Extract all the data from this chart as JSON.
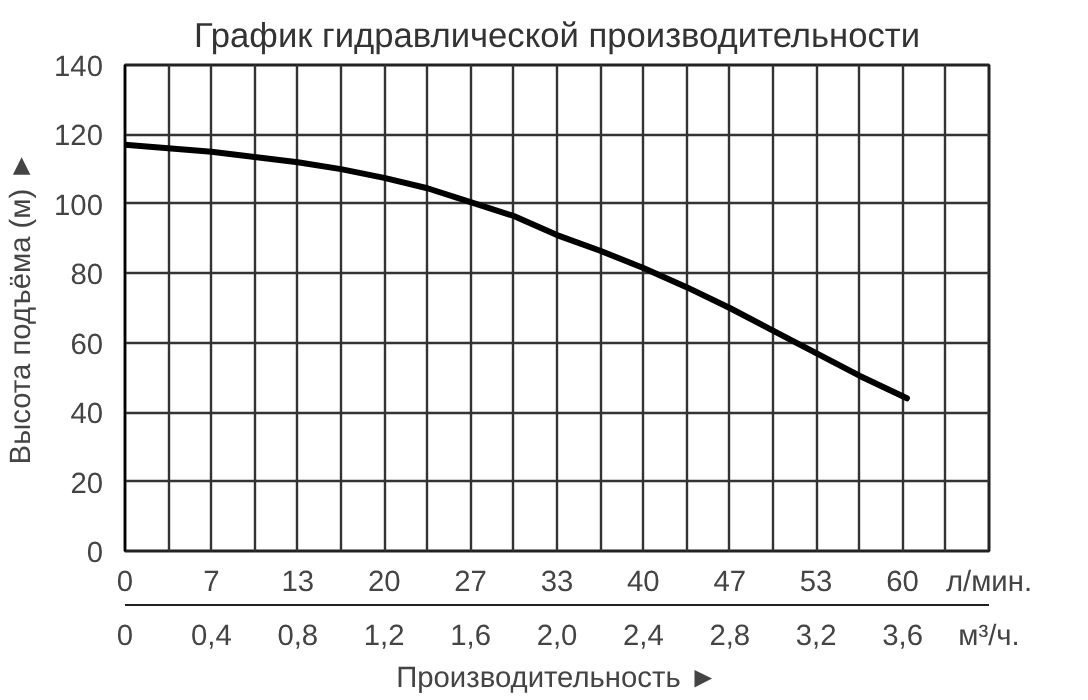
{
  "chart_data": {
    "type": "line",
    "title": "График гидравлической производительности",
    "xlabel": "Производительность ►",
    "ylabel": "Высота подъёма (м) ►",
    "x": [
      0,
      0.2,
      0.4,
      0.6,
      0.8,
      1.0,
      1.2,
      1.4,
      1.6,
      1.8,
      2.0,
      2.2,
      2.4,
      2.6,
      2.8,
      3.0,
      3.2,
      3.4,
      3.62
    ],
    "series": [
      {
        "color": "#000000",
        "values": [
          117,
          116,
          115,
          113.5,
          112,
          110,
          107.5,
          104.5,
          100.5,
          96.5,
          91,
          86.5,
          81.5,
          76,
          70,
          63.5,
          57,
          50.5,
          44
        ]
      }
    ],
    "xlim": [
      0,
      4.0
    ],
    "xticks": [
      0,
      {
        "value": 0.2,
        "label": null
      },
      {
        "value": 0.4,
        "label": "0,4"
      },
      {
        "value": 0.6,
        "label": null
      },
      {
        "value": 0.8,
        "label": "0,8"
      },
      {
        "value": 1.0,
        "label": null
      },
      {
        "value": 1.2,
        "label": "1,2"
      },
      {
        "value": 1.4,
        "label": null
      },
      {
        "value": 1.6,
        "label": "1,6"
      },
      {
        "value": 1.8,
        "label": null
      },
      {
        "value": 2.0,
        "label": "2,0"
      },
      {
        "value": 2.2,
        "label": null
      },
      {
        "value": 2.4,
        "label": "2,4"
      },
      {
        "value": 2.6,
        "label": null
      },
      {
        "value": 2.8,
        "label": "2,8"
      },
      {
        "value": 3.0,
        "label": null
      },
      {
        "value": 3.2,
        "label": "3,2"
      },
      {
        "value": 3.4,
        "label": null
      },
      {
        "value": 3.6,
        "label": "3,6"
      },
      {
        "value": 3.8,
        "label": null
      },
      {
        "value": 4.0,
        "label": null
      }
    ],
    "x2lim": [
      0,
      66.67
    ],
    "x2ticks": [
      0,
      {
        "value": 6.67,
        "label": "7"
      },
      {
        "value": 13.33,
        "label": "13"
      },
      20,
      {
        "value": 26.67,
        "label": "27"
      },
      {
        "value": 33.33,
        "label": "33"
      },
      40,
      {
        "value": 46.67,
        "label": "47"
      },
      {
        "value": 53.33,
        "label": "53"
      },
      60
    ],
    "ylim": [
      0,
      140
    ],
    "yticks": [
      0,
      20,
      40,
      60,
      80,
      100,
      120,
      140
    ],
    "annotations": [
      "л/мин.",
      "м³/ч."
    ],
    "grid": true,
    "marker": "none",
    "line_style": "solid"
  }
}
